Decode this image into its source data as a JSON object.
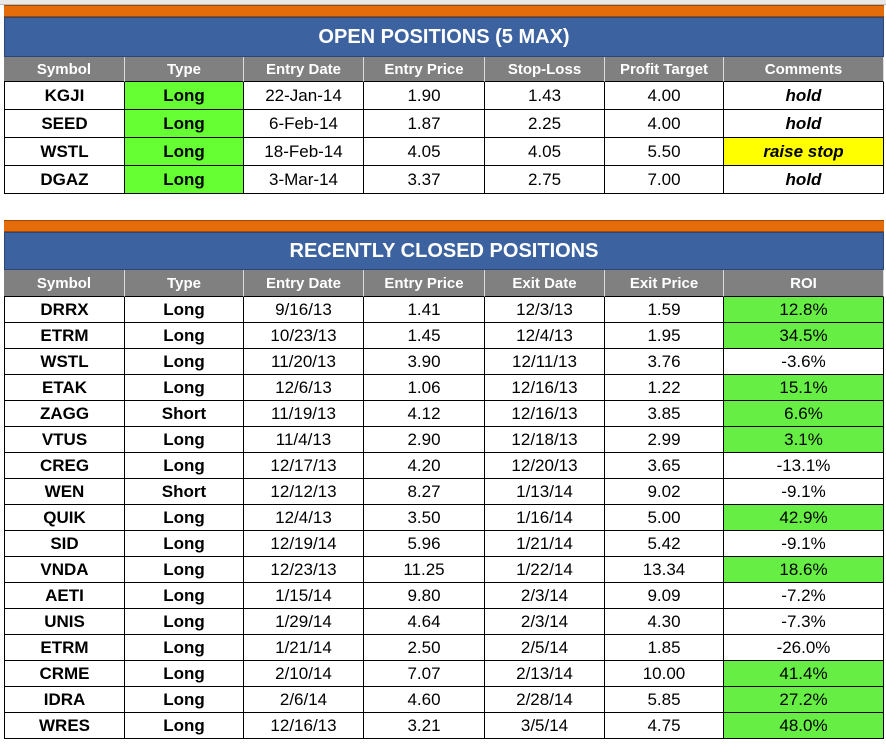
{
  "open_positions": {
    "title": "OPEN POSITIONS (5 MAX)",
    "headers": [
      "Symbol",
      "Type",
      "Entry Date",
      "Entry Price",
      "Stop-Loss",
      "Profit Target",
      "Comments"
    ],
    "rows": [
      [
        "KGJI",
        "Long",
        "22-Jan-14",
        "1.90",
        "1.43",
        "4.00",
        "hold"
      ],
      [
        "SEED",
        "Long",
        "6-Feb-14",
        "1.87",
        "2.25",
        "4.00",
        "hold"
      ],
      [
        "WSTL",
        "Long",
        "18-Feb-14",
        "4.05",
        "4.05",
        "5.50",
        "raise stop"
      ],
      [
        "DGAZ",
        "Long",
        "3-Mar-14",
        "3.37",
        "2.75",
        "7.00",
        "hold"
      ]
    ]
  },
  "closed_positions": {
    "title": "RECENTLY CLOSED POSITIONS",
    "headers": [
      "Symbol",
      "Type",
      "Entry Date",
      "Entry Price",
      "Exit Date",
      "Exit Price",
      "ROI"
    ],
    "rows": [
      [
        "DRRX",
        "Long",
        "9/16/13",
        "1.41",
        "12/3/13",
        "1.59",
        "12.8%"
      ],
      [
        "ETRM",
        "Long",
        "10/23/13",
        "1.45",
        "12/4/13",
        "1.95",
        "34.5%"
      ],
      [
        "WSTL",
        "Long",
        "11/20/13",
        "3.90",
        "12/11/13",
        "3.76",
        "-3.6%"
      ],
      [
        "ETAK",
        "Long",
        "12/6/13",
        "1.06",
        "12/16/13",
        "1.22",
        "15.1%"
      ],
      [
        "ZAGG",
        "Short",
        "11/19/13",
        "4.12",
        "12/16/13",
        "3.85",
        "6.6%"
      ],
      [
        "VTUS",
        "Long",
        "11/4/13",
        "2.90",
        "12/18/13",
        "2.99",
        "3.1%"
      ],
      [
        "CREG",
        "Long",
        "12/17/13",
        "4.20",
        "12/20/13",
        "3.65",
        "-13.1%"
      ],
      [
        "WEN",
        "Short",
        "12/12/13",
        "8.27",
        "1/13/14",
        "9.02",
        "-9.1%"
      ],
      [
        "QUIK",
        "Long",
        "12/4/13",
        "3.50",
        "1/16/14",
        "5.00",
        "42.9%"
      ],
      [
        "SID",
        "Long",
        "12/19/14",
        "5.96",
        "1/21/14",
        "5.42",
        "-9.1%"
      ],
      [
        "VNDA",
        "Long",
        "12/23/13",
        "11.25",
        "1/22/14",
        "13.34",
        "18.6%"
      ],
      [
        "AETI",
        "Long",
        "1/15/14",
        "9.80",
        "2/3/14",
        "9.09",
        "-7.2%"
      ],
      [
        "UNIS",
        "Long",
        "1/29/14",
        "4.64",
        "2/3/14",
        "4.30",
        "-7.3%"
      ],
      [
        "ETRM",
        "Long",
        "1/21/14",
        "2.50",
        "2/5/14",
        "1.85",
        "-26.0%"
      ],
      [
        "CRME",
        "Long",
        "2/10/14",
        "7.07",
        "2/13/14",
        "10.00",
        "41.4%"
      ],
      [
        "IDRA",
        "Long",
        "2/6/14",
        "4.60",
        "2/28/14",
        "5.85",
        "27.2%"
      ],
      [
        "WRES",
        "Long",
        "12/16/13",
        "3.21",
        "3/5/14",
        "4.75",
        "48.0%"
      ]
    ]
  }
}
